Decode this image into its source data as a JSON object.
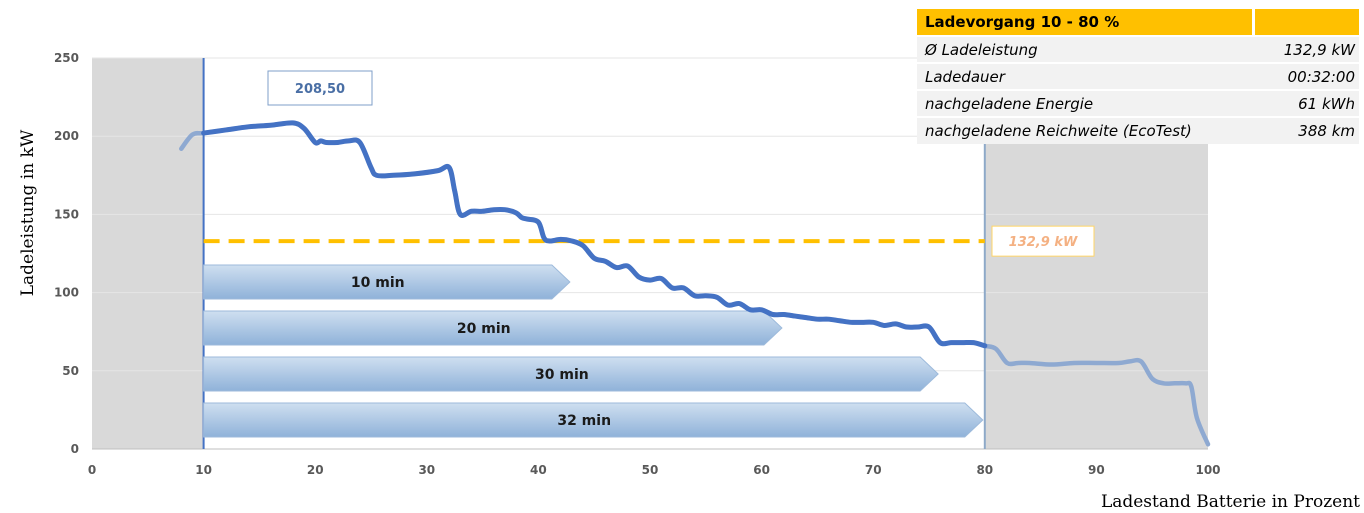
{
  "chart_data": {
    "type": "line",
    "x_axis": {
      "ticks": [
        0,
        10,
        20,
        30,
        40,
        50,
        60,
        70,
        80,
        90,
        100
      ],
      "label": "Ladestand Batterie in Prozent",
      "range": [
        0,
        100
      ]
    },
    "y_axis": {
      "ticks": [
        0,
        50,
        100,
        150,
        200,
        250
      ],
      "label": "Ladeleistung in kW",
      "range": [
        0,
        250
      ]
    },
    "grid": "horizontal",
    "series": [
      {
        "color": "#4472c4",
        "x": [
          8,
          9,
          10,
          12,
          14,
          16,
          18,
          19,
          20,
          20.5,
          21,
          22,
          23,
          24,
          25,
          25.5,
          27,
          29,
          31,
          32,
          32.5,
          33,
          34,
          35,
          36,
          37,
          38,
          38.5,
          39,
          40,
          40.5,
          41,
          42,
          43,
          44,
          45,
          46,
          47,
          48,
          49,
          50,
          51,
          52,
          53,
          54,
          55,
          56,
          57,
          58,
          59,
          60,
          61,
          62,
          63,
          64,
          65,
          66,
          67,
          68,
          69,
          70,
          71,
          72,
          73,
          74,
          75,
          76,
          77,
          78,
          79,
          80,
          81,
          82,
          83,
          84,
          86,
          88,
          90,
          92,
          93,
          94,
          95,
          96,
          97,
          98,
          98.5,
          99,
          100
        ],
        "values": [
          192,
          201,
          202,
          204,
          206,
          207,
          208.5,
          205,
          196,
          197,
          196,
          196,
          197,
          196,
          180,
          175,
          175,
          176,
          178,
          180,
          165,
          150,
          152,
          152,
          153,
          153,
          151,
          148,
          147,
          145,
          135,
          133,
          134,
          133,
          130,
          122,
          120,
          116,
          117,
          110,
          108,
          109,
          103,
          103,
          98,
          98,
          97,
          92,
          93,
          89,
          89,
          86,
          86,
          85,
          84,
          83,
          83,
          82,
          81,
          81,
          81,
          79,
          80,
          78,
          78,
          78,
          68,
          68,
          68,
          68,
          66,
          64,
          55,
          55,
          55,
          54,
          55,
          55,
          55,
          56,
          56,
          45,
          42,
          42,
          42,
          40,
          20,
          3
        ]
      }
    ],
    "shaded_regions": [
      {
        "from": 0,
        "to": 10,
        "color": "#d9d9d9"
      },
      {
        "from": 80,
        "to": 100,
        "color": "#d9d9d9"
      }
    ],
    "vertical_lines": [
      {
        "x": 10,
        "color": "#4472c4"
      },
      {
        "x": 80,
        "color": "#8ea9c8"
      }
    ],
    "reference_line": {
      "y": 132.9,
      "label": "132,9 kW",
      "color": "#ffc000"
    },
    "peak_label": {
      "x": 19,
      "y": 208.5,
      "text": "208,50"
    },
    "time_arrows": [
      {
        "from": 10,
        "to": 43,
        "label": "10 min"
      },
      {
        "from": 10,
        "to": 62,
        "label": "20 min"
      },
      {
        "from": 10,
        "to": 76,
        "label": "30 min"
      },
      {
        "from": 10,
        "to": 80,
        "label": "32 min"
      }
    ]
  },
  "info_table": {
    "header": {
      "label": "Ladevorgang 10 - 80 %",
      "value": ""
    },
    "rows": [
      {
        "label": "Ø Ladeleistung",
        "value": "132,9 kW"
      },
      {
        "label": "Ladedauer",
        "value": "00:32:00"
      },
      {
        "label": "nachgeladene Energie",
        "value": "61 kWh"
      },
      {
        "label": "nachgeladene Reichweite (EcoTest)",
        "value": "388 km"
      }
    ]
  }
}
